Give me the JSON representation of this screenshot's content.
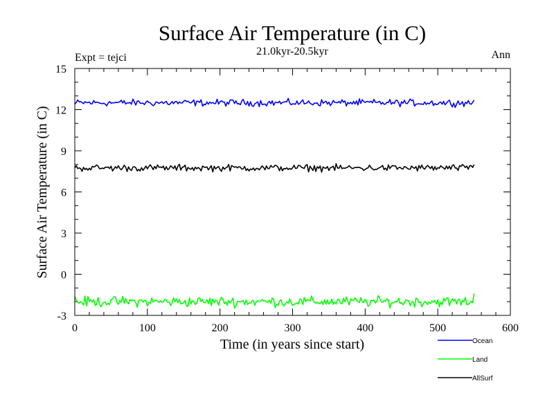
{
  "chart_data": {
    "type": "line",
    "title": "Surface Air Temperature (in C)",
    "subtitle": "21.0kyr-20.5kyr",
    "experiment_label": "Expt = tejci",
    "season_label": "Ann",
    "xlabel": "Time (in years since start)",
    "ylabel": "Surface Air Temperature (in C)",
    "xlim": [
      0,
      600
    ],
    "ylim": [
      -3,
      15
    ],
    "x_ticks": [
      0,
      100,
      200,
      300,
      400,
      500,
      600
    ],
    "y_ticks": [
      -3,
      0,
      3,
      6,
      9,
      12,
      15
    ],
    "x_minor_step": 20,
    "y_minor_step": 1,
    "x_start": 0,
    "x_end": 550,
    "grid": false,
    "legend_position": "bottom-right outside",
    "series": [
      {
        "name": "Ocean",
        "color": "#0000ff",
        "mean": 12.5,
        "noise": 0.12,
        "start": 12.4,
        "end": 12.7
      },
      {
        "name": "Land",
        "color": "#00ff00",
        "mean": -2.0,
        "noise": 0.18,
        "start": -1.6,
        "end": -1.4
      },
      {
        "name": "AllSurf",
        "color": "#000000",
        "mean": 7.75,
        "noise": 0.12,
        "start": 7.75,
        "end": 8.0
      }
    ]
  }
}
